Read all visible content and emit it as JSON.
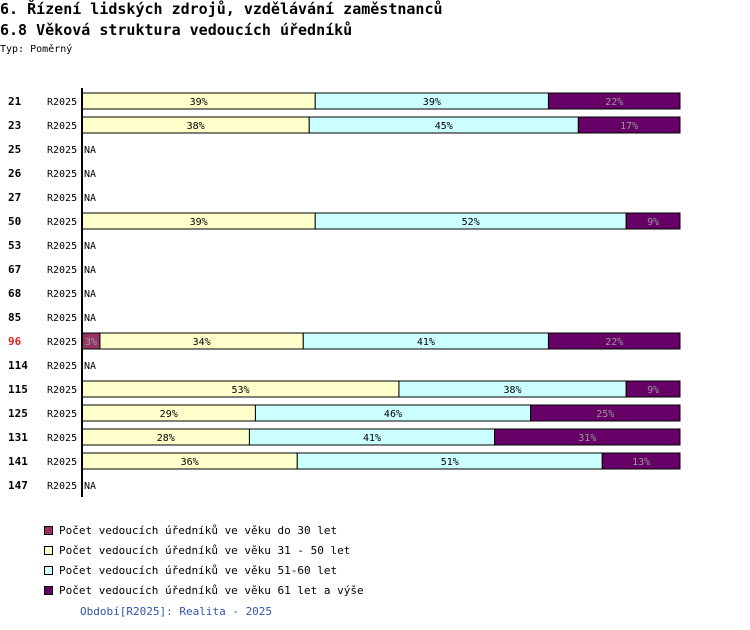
{
  "header": {
    "title": "6. Řízení lidských zdrojů, vzdělávání zaměstnanců",
    "subtitle": "6.8 Věková struktura vedoucích úředníků",
    "typ": "Typ: Poměrný"
  },
  "footer": {
    "obdobi": "Období[R2025]: Realita - 2025"
  },
  "colors": {
    "do30": "#993366",
    "r31_50": "#ffffcc",
    "r51_60": "#ccffff",
    "r61": "#660066",
    "highlight_row": "#dd2222"
  },
  "chart_data": {
    "type": "bar",
    "orientation": "horizontal",
    "stacked": true,
    "percent": true,
    "xlim": [
      0,
      100
    ],
    "period_label": "R2025",
    "na_label": "NA",
    "highlight_category": "96",
    "categories": [
      "21",
      "23",
      "25",
      "26",
      "27",
      "50",
      "53",
      "67",
      "68",
      "85",
      "96",
      "114",
      "115",
      "125",
      "131",
      "141",
      "147"
    ],
    "series": [
      {
        "name": "Počet vedoucích úředníků ve věku do 30 let",
        "color": "#993366",
        "values": [
          0,
          0,
          null,
          null,
          null,
          0,
          null,
          null,
          null,
          null,
          3,
          null,
          0,
          0,
          0,
          0,
          null
        ]
      },
      {
        "name": "Počet vedoucích úředníků ve věku 31 - 50 let",
        "color": "#ffffcc",
        "values": [
          39,
          38,
          null,
          null,
          null,
          39,
          null,
          null,
          null,
          null,
          34,
          null,
          53,
          29,
          28,
          36,
          null
        ]
      },
      {
        "name": "Počet vedoucích úředníků ve věku 51-60 let",
        "color": "#ccffff",
        "values": [
          39,
          45,
          null,
          null,
          null,
          52,
          null,
          null,
          null,
          null,
          41,
          null,
          38,
          46,
          41,
          51,
          null
        ]
      },
      {
        "name": "Počet vedoucích úředníků ve věku 61 let a výše",
        "color": "#660066",
        "values": [
          22,
          17,
          null,
          null,
          null,
          9,
          null,
          null,
          null,
          null,
          22,
          null,
          9,
          25,
          31,
          13,
          null
        ]
      }
    ]
  }
}
